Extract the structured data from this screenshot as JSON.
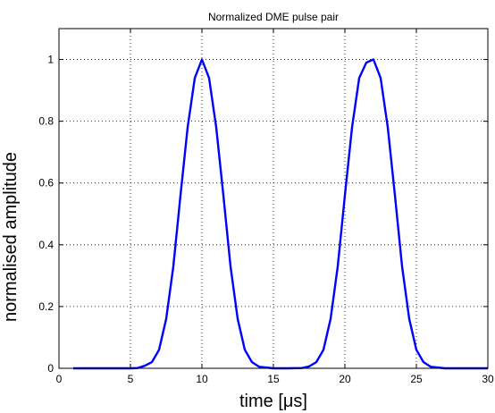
{
  "chart_data": {
    "type": "line",
    "title": "Normalized DME pulse pair",
    "xlabel": "time [μs]",
    "ylabel": "normalised amplitude",
    "xlim": [
      0,
      30
    ],
    "ylim": [
      0,
      1.1
    ],
    "xticks": [
      0,
      5,
      10,
      15,
      20,
      25,
      30
    ],
    "xtick_labels": [
      "0",
      "5",
      "10",
      "15",
      "20",
      "25",
      "30"
    ],
    "yticks": [
      0,
      0.2,
      0.4,
      0.6,
      0.8,
      1
    ],
    "ytick_labels": [
      "0",
      "0.2",
      "0.4",
      "0.6",
      "0.8",
      "1"
    ],
    "grid": true,
    "series": [
      {
        "color": "#0000ff",
        "x": [
          1,
          2,
          3,
          4,
          5,
          5.5,
          6,
          6.5,
          7,
          7.5,
          8,
          8.5,
          9,
          9.5,
          10,
          10.5,
          11,
          11.5,
          12,
          12.5,
          13,
          13.5,
          14,
          15,
          16,
          17,
          17.5,
          18,
          18.5,
          19,
          19.5,
          20,
          20.5,
          21,
          21.5,
          22,
          22.5,
          23,
          23.5,
          24,
          24.5,
          25,
          25.5,
          26,
          27,
          28,
          29,
          30
        ],
        "y": [
          0,
          0,
          0,
          0,
          0,
          0.001,
          0.008,
          0.02,
          0.06,
          0.16,
          0.33,
          0.56,
          0.78,
          0.94,
          1.0,
          0.94,
          0.78,
          0.56,
          0.33,
          0.16,
          0.06,
          0.02,
          0.005,
          0,
          0,
          0.001,
          0.006,
          0.02,
          0.06,
          0.16,
          0.33,
          0.56,
          0.78,
          0.94,
          0.99,
          1.0,
          0.94,
          0.78,
          0.56,
          0.33,
          0.16,
          0.06,
          0.02,
          0.005,
          0,
          0,
          0,
          0
        ]
      }
    ]
  }
}
